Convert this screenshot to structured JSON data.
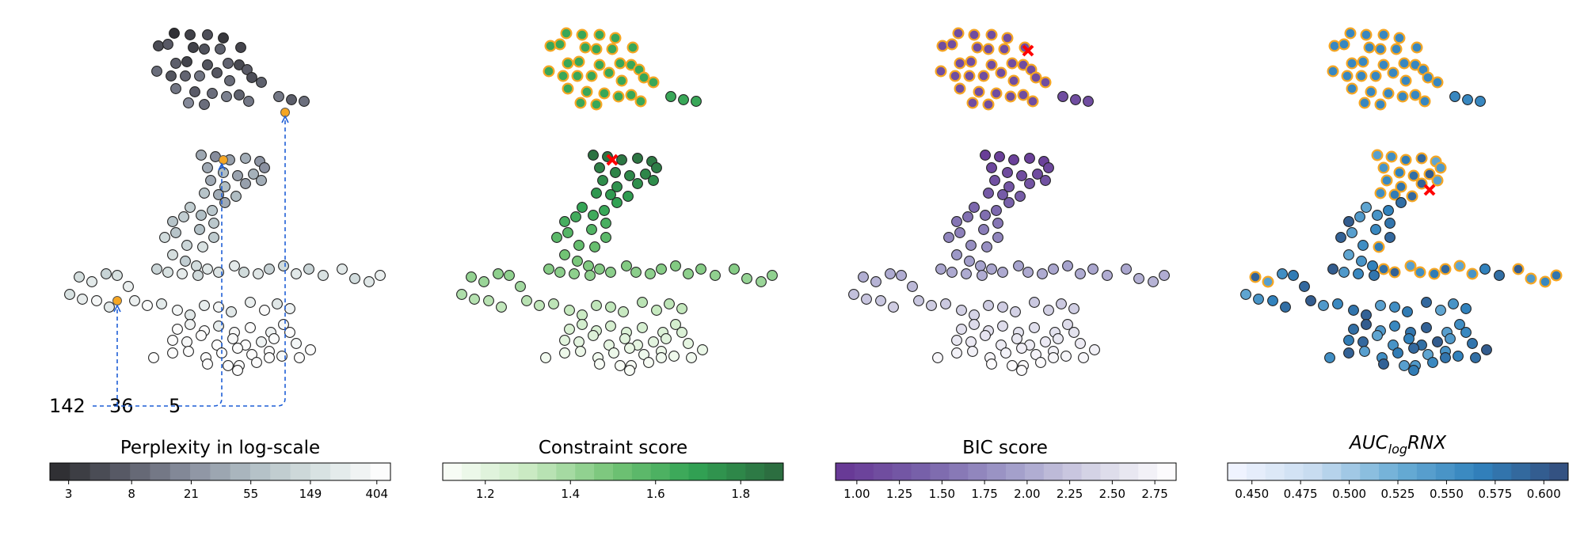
{
  "chart_data": [
    {
      "type": "scatter",
      "title": "Perplexity in log-scale",
      "colormap": "gray-reversed",
      "color_ticks": [
        "3",
        "8",
        "21",
        "55",
        "149",
        "404"
      ],
      "marker_edge": "#222222",
      "highlight_color": "#f5a623",
      "selection_path_labels": [
        "142",
        "36",
        "5"
      ],
      "point_count": 142
    },
    {
      "type": "scatter",
      "title": "Constraint score",
      "colormap": "Greens",
      "color_range": [
        1.1,
        1.92
      ],
      "color_ticks": [
        "1.2",
        "1.4",
        "1.6",
        "1.8"
      ],
      "highlight_edge_color": "#f5a623",
      "best_marker_color": "#ff0000"
    },
    {
      "type": "scatter",
      "title": "BIC score",
      "colormap": "Purples-reversed",
      "color_range": [
        0.95,
        2.78
      ],
      "color_ticks": [
        "1.00",
        "1.25",
        "1.50",
        "1.75",
        "2.00",
        "2.25",
        "2.50",
        "2.75"
      ],
      "highlight_edge_color": "#f5a623",
      "best_marker_color": "#ff0000"
    },
    {
      "type": "scatter",
      "title_main": "AUC",
      "title_sub": "log",
      "title_tail": "RNX",
      "colormap": "Blues",
      "color_range": [
        0.44,
        0.62
      ],
      "color_ticks": [
        "0.450",
        "0.475",
        "0.500",
        "0.525",
        "0.550",
        "0.575",
        "0.600"
      ],
      "highlight_edge_color": "#f5a623",
      "best_marker_color": "#ff0000"
    }
  ]
}
